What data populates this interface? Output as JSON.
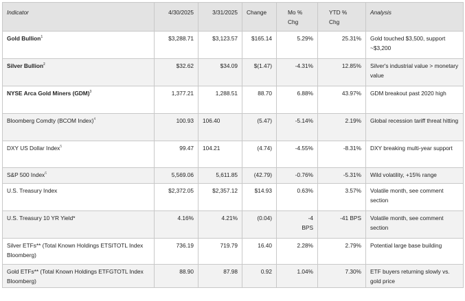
{
  "headers": {
    "indicator": "Indicator",
    "d1": "4/30/2025",
    "d2": "3/31/2025",
    "change": "Change",
    "mo": "Mo %\nChg",
    "ytd": "YTD %\nChg",
    "analysis": "Analysis"
  },
  "rows": [
    {
      "indicator": "Gold Bullion",
      "sup": "1",
      "d1": "$3,288.71",
      "d2": "$3,123.57",
      "change": "$165.14",
      "mo": "5.29%",
      "ytd": "25.31%",
      "analysis": "Gold touched $3,500, support ~$3,200"
    },
    {
      "indicator": "Silver Bullion",
      "sup": "2",
      "d1": "$32.62",
      "d2": "$34.09",
      "change": "$(1.47)",
      "mo": "-4.31%",
      "ytd": "12.85%",
      "analysis": "Silver's industrial value > monetary value"
    },
    {
      "indicator": "NYSE Arca Gold Miners (GDM)",
      "sup": "3",
      "d1": "1,377.21",
      "d2": "1,288.51",
      "change": "88.70",
      "mo": "6.88%",
      "ytd": "43.97%",
      "analysis": "GDM breakout past 2020 high"
    },
    {
      "indicator": "Bloomberg Comdty (BCOM Index)",
      "sup": "4",
      "d1": "100.93",
      "d2": "106.40",
      "change": "(5.47)",
      "mo": "-5.14%",
      "ytd": "2.19%",
      "analysis": "Global recession tariff threat hitting"
    },
    {
      "indicator": "DXY US Dollar Index",
      "sup": "5",
      "d1": "99.47",
      "d2": "104.21",
      "change": "(4.74)",
      "mo": "-4.55%",
      "ytd": "-8.31%",
      "analysis": "DXY breaking multi-year support"
    },
    {
      "indicator": "S&P 500 Index",
      "sup": "6",
      "d1": "5,569.06",
      "d2": "5,611.85",
      "change": "(42.79)",
      "mo": "-0.76%",
      "ytd": "-5.31%",
      "analysis": "Wild volatility, +15% range"
    },
    {
      "indicator": "U.S. Treasury Index",
      "sup": "",
      "d1": "$2,372.05",
      "d2": "$2,357.12",
      "change": "$14.93",
      "mo": "0.63%",
      "ytd": "3.57%",
      "analysis": "Volatile month, see comment section"
    },
    {
      "indicator": "U.S. Treasury 10 YR Yield*",
      "sup": "",
      "d1": "4.16%",
      "d2": "4.21%",
      "change": "(0.04)",
      "mo": "-4\nBPS",
      "ytd": "-41 BPS",
      "analysis": "Volatile month, see comment section"
    },
    {
      "indicator": "Silver ETFs** (Total Known Holdings ETSITOTL Index Bloomberg)",
      "sup": "",
      "d1": "736.19",
      "d2": "719.79",
      "change": "16.40",
      "mo": "2.28%",
      "ytd": "2.79%",
      "analysis": "Potential large base building"
    },
    {
      "indicator": "Gold ETFs** (Total Known Holdings ETFGTOTL Index Bloomberg)",
      "sup": "",
      "d1": "88.90",
      "d2": "87.98",
      "change": "0.92",
      "mo": "1.04%",
      "ytd": "7.30%",
      "analysis": "ETF buyers returning slowly vs. gold price"
    }
  ]
}
